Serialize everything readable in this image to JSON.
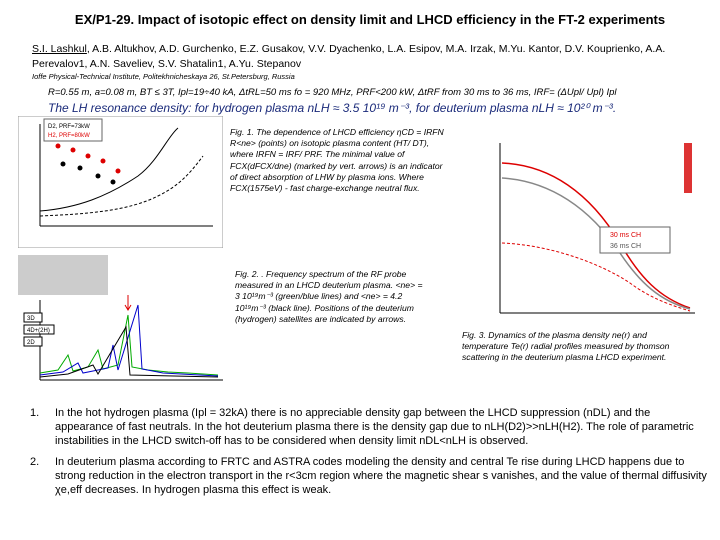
{
  "title": "EX/P1-29. Impact of isotopic effect on density limit and LHCD efficiency in the FT-2 experiments",
  "lead_author": "S.I. Lashkul",
  "coauthors": ", A.B. Altukhov, A.D. Gurchenko, E.Z. Gusakov, V.V. Dyachenko, L.A. Esipov, M.A. Irzak, M.Yu. Kantor, D.V. Kouprienko, A.A. Perevalov1, A.N. Saveliev, S.V. Shatalin1, A.Yu. Stepanov",
  "affiliation": "Ioffe Physical-Technical Institute, Politekhnicheskaya 26, St.Petersburg, Russia",
  "parameters": "R=0.55 m, a=0.08 m, BT ≤ 3T, Ipl=19÷40 kA, ΔtRL=50 ms fo = 920 MHz, PRF<200 kW, ΔtRF from 30 ms to 36 ms, IRF= (ΔUpl/ Upl) Ipl",
  "resonance": "The LH resonance density: for hydrogen plasma nLH ≈ 3.5 10¹⁹ m⁻³, for deuterium plasma nLH ≈ 10²⁰ m⁻³.",
  "figures": [
    {
      "caption": "Fig. 1. The dependence of LHCD efficiency ηCD = IRFN R<ne> (points) on isotopic plasma content (HT/ DT), where IRFN = IRF/ PRF. The minimal value of FCX(dFCX/dne) (marked by vert. arrows) is an indicator of direct absorption of LHW by plasma ions. Where FCX(1575eV) - fast charge-exchange neutral flux.",
      "labels": [
        "D2, PRF=73kW",
        "H2, PRF=80kW"
      ]
    },
    {
      "caption": "Fig. 2. . Frequency spectrum of the RF probe measured in an LHCD deuterium plasma. <ne> = 3 10¹⁹m⁻³ (green/blue lines) and <ne> = 4.2 10¹⁹m⁻³ (black line). Positions of the deuterium (hydrogen) satellites are indicated by arrows.",
      "labels": [
        "3D",
        "2D",
        "4D+(2H)"
      ]
    },
    {
      "caption": "Fig. 3. Dynamics of the plasma density ne(r) and temperature Te(r) radial profiles measured by thomson scattering in the deuterium plasma LHCD experiment.",
      "labels": [
        "30 ms CH",
        "36 ms CH"
      ]
    }
  ],
  "items": [
    {
      "number": "1.",
      "text": "In the hot hydrogen plasma (Ipl = 32kA) there is no appreciable density gap between the LHCD suppression (nDL) and the appearance of fast neutrals. In the hot deuterium plasma there is the density gap due to nLH(D2)>>nLH(H2). The role of parametric instabilities in the LHCD switch-off has to be considered when density limit nDL<nLH is observed."
    },
    {
      "number": "2.",
      "text": "In deuterium plasma according to FRTC and ASTRA codes modeling the density and central Te rise during LHCD happens due to strong reduction in the electron transport in the r<3cm region where the magnetic shear s vanishes, and the value of thermal diffusivity χe,eff decreases. In hydrogen plasma this effect is weak."
    }
  ]
}
